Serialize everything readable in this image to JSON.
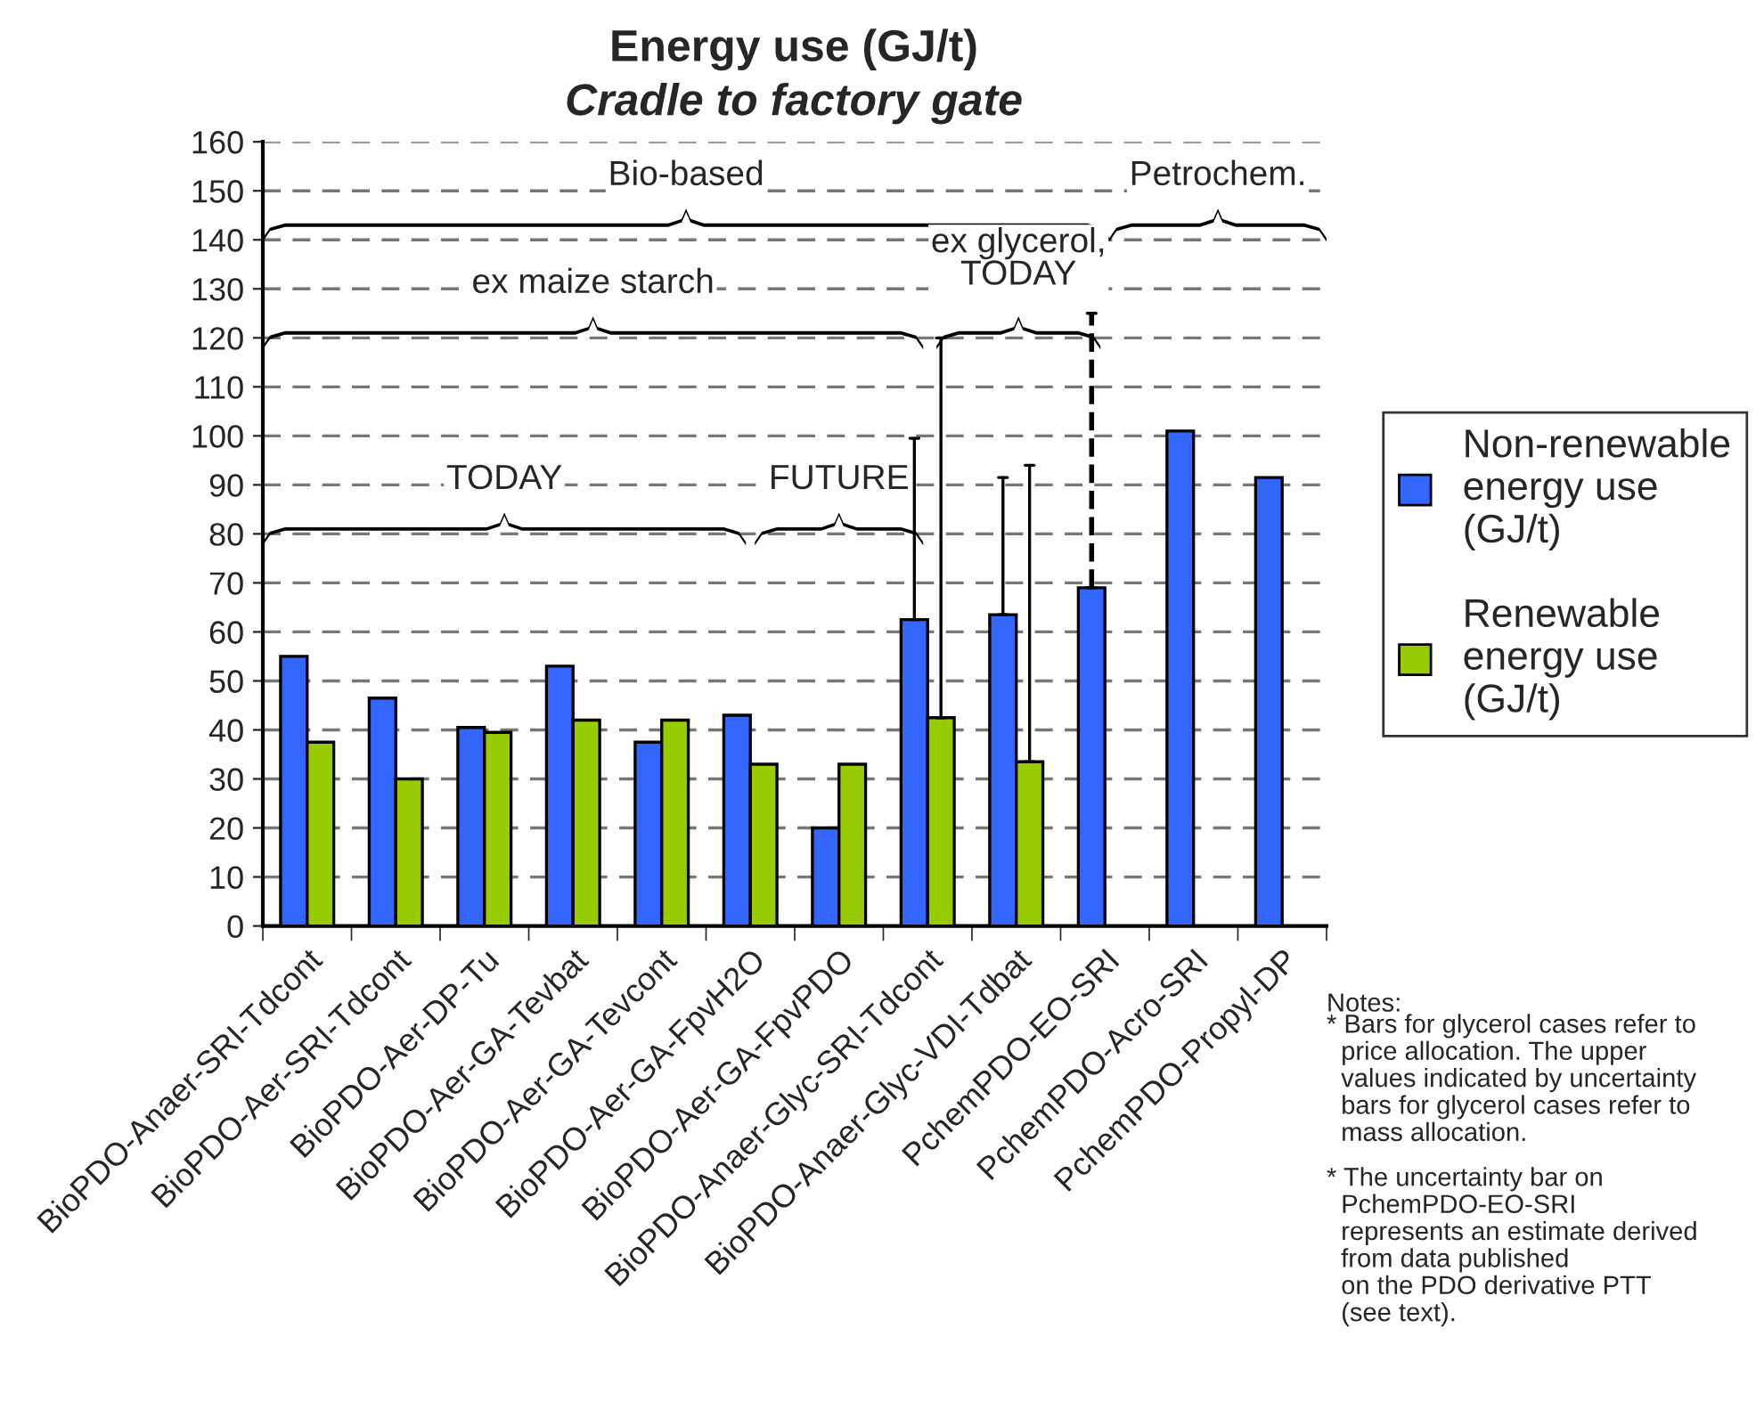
{
  "chart_data": {
    "type": "bar",
    "title": "Energy use (GJ/t)",
    "subtitle": "Cradle to factory gate",
    "categories": [
      "BioPDO-Anaer-SRI-Tdcont",
      "BioPDO-Aer-SRI-Tdcont",
      "BioPDO-Aer-DP-Tu",
      "BioPDO-Aer-GA-Tevbat",
      "BioPDO-Aer-GA-Tevcont",
      "BioPDO-Aer-GA-FpvH2O",
      "BioPDO-Aer-GA-FpvPDO",
      "BioPDO-Anaer-Glyc-SRI-Tdcont",
      "BioPDO-Anaer-Glyc-VDI-Tdbat",
      "PchemPDO-EO-SRI",
      "PchemPDO-Acro-SRI",
      "PchemPDO-Propyl-DP"
    ],
    "series": [
      {
        "name": "Non-renewable energy use (GJ/t)",
        "color": "#3366ff",
        "values": [
          55,
          46.5,
          40.5,
          53,
          37.5,
          43,
          20,
          62.5,
          63.5,
          69,
          101,
          91.5
        ],
        "errors": [
          null,
          null,
          null,
          null,
          null,
          null,
          null,
          [
            62.5,
            99.5
          ],
          [
            63.5,
            91.5
          ],
          [
            69,
            125
          ],
          null,
          null
        ]
      },
      {
        "name": "Renewable energy use (GJ/t)",
        "color": "#99cc00",
        "values": [
          37.5,
          30,
          39.5,
          42,
          42,
          33,
          33,
          42.5,
          33.5,
          null,
          null,
          null
        ],
        "errors": [
          null,
          null,
          null,
          null,
          null,
          null,
          null,
          [
            42.5,
            120
          ],
          [
            33.5,
            94
          ],
          null,
          null,
          null
        ]
      }
    ],
    "ylim": [
      0,
      160
    ],
    "yticks": [
      0,
      10,
      20,
      30,
      40,
      50,
      60,
      70,
      80,
      90,
      100,
      110,
      120,
      130,
      140,
      150,
      160
    ],
    "grid": "y",
    "legend": "right",
    "annotations": [
      "Bio-based",
      "Petrochem.",
      "ex maize starch",
      "ex glycerol,\nTODAY",
      "TODAY",
      "FUTURE",
      "Notes:",
      "* Bars for glycerol cases refer to\n  price allocation. The upper\n  values indicated by uncertainty\n  bars for glycerol cases refer to\n  mass allocation.",
      "* The uncertainty bar on\n  PchemPDO-EO-SRI\n  represents an estimate derived\n  from data published\n  on the PDO derivative PTT\n  (see text)."
    ]
  }
}
